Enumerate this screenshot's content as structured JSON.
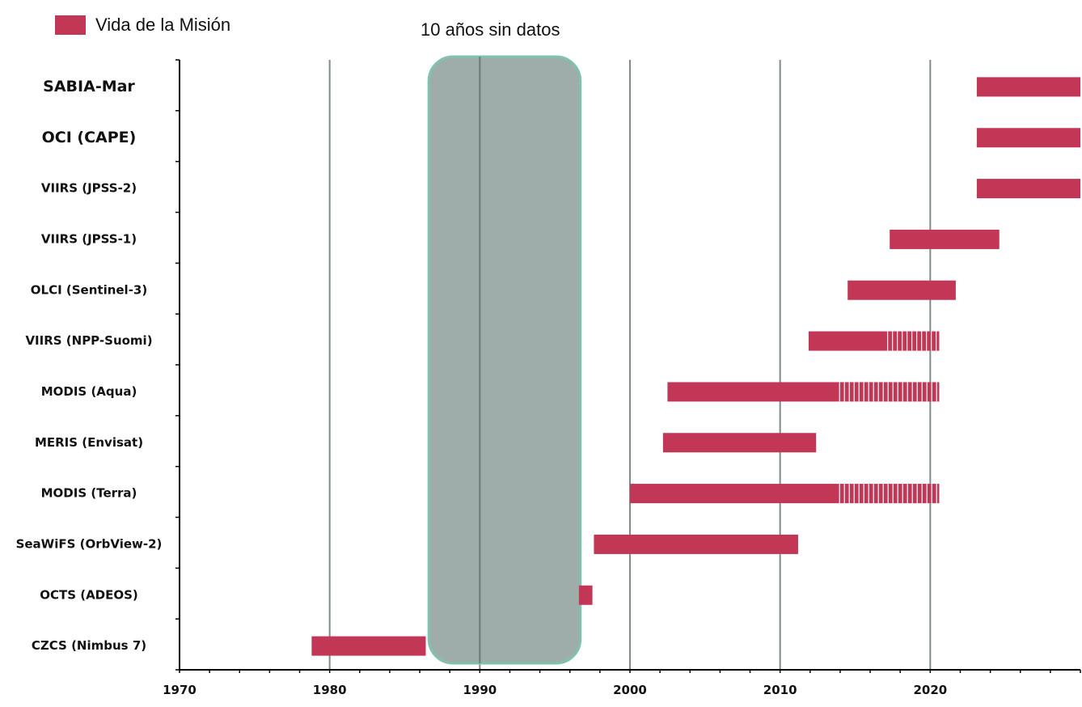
{
  "colors": {
    "bar": "#c13755",
    "gap_fill": "#9fadaa",
    "gap_border": "#7fc3ae",
    "grid": "#7f8c88"
  },
  "chart_data": {
    "type": "bar",
    "orientation": "horizontal-timeline",
    "xlim": [
      1970,
      2030
    ],
    "x_ticks": [
      1970,
      1980,
      1990,
      2000,
      2010,
      2020
    ],
    "grid": "vertical at each decade",
    "legend": {
      "label": "Vida de la Misión",
      "position": "top-left"
    },
    "annotation": {
      "label": "10 años sin datos",
      "start": 1986.6,
      "end": 1996.7
    },
    "missions": [
      {
        "name": "SABIA-Mar",
        "bold_large": true,
        "start": 2023.1,
        "end": 2030.0,
        "extended_from": null
      },
      {
        "name": "OCI (CAPE)",
        "bold_large": true,
        "start": 2023.1,
        "end": 2030.0,
        "extended_from": null
      },
      {
        "name": "VIIRS (JPSS-2)",
        "bold_large": false,
        "start": 2023.1,
        "end": 2030.0,
        "extended_from": null
      },
      {
        "name": "VIIRS (JPSS-1)",
        "bold_large": false,
        "start": 2017.3,
        "end": 2024.6,
        "extended_from": null
      },
      {
        "name": "OLCI (Sentinel-3)",
        "bold_large": false,
        "start": 2014.5,
        "end": 2021.7,
        "extended_from": null
      },
      {
        "name": "VIIRS (NPP-Suomi)",
        "bold_large": false,
        "start": 2011.9,
        "end": 2020.6,
        "extended_from": 2017.0
      },
      {
        "name": "MODIS (Aqua)",
        "bold_large": false,
        "start": 2002.5,
        "end": 2020.6,
        "extended_from": 2013.8
      },
      {
        "name": "MERIS (Envisat)",
        "bold_large": false,
        "start": 2002.2,
        "end": 2012.4,
        "extended_from": null
      },
      {
        "name": "MODIS (Terra)",
        "bold_large": false,
        "start": 2000.0,
        "end": 2020.6,
        "extended_from": 2013.8
      },
      {
        "name": "SeaWiFS (OrbView-2)",
        "bold_large": false,
        "start": 1997.6,
        "end": 2011.2,
        "extended_from": null
      },
      {
        "name": "OCTS (ADEOS)",
        "bold_large": false,
        "start": 1996.6,
        "end": 1997.5,
        "extended_from": null
      },
      {
        "name": "CZCS (Nimbus 7)",
        "bold_large": false,
        "start": 1978.8,
        "end": 1986.4,
        "extended_from": null
      }
    ]
  }
}
